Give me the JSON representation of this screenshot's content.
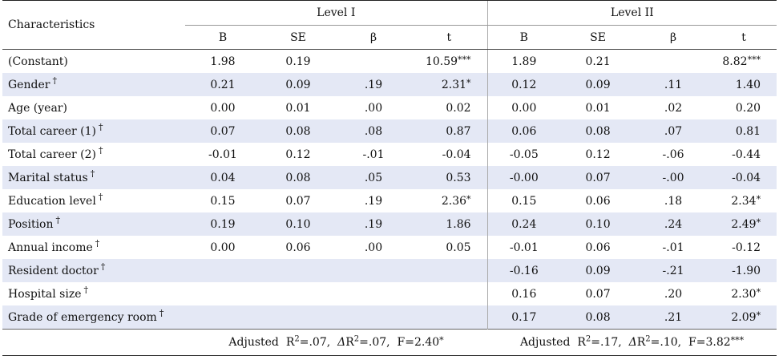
{
  "header": {
    "characteristics": "Characteristics",
    "level1": "Level I",
    "level2": "Level II",
    "cols": [
      "B",
      "SE",
      "β",
      "t",
      "B",
      "SE",
      "β",
      "t"
    ]
  },
  "rows": [
    {
      "label": "(Constant)",
      "dagger": "",
      "cells": [
        "1.98",
        "0.19",
        "",
        "10.59",
        "1.89",
        "0.21",
        "",
        "8.82"
      ],
      "sig": [
        "",
        "",
        "",
        "***",
        "",
        "",
        "",
        "***"
      ]
    },
    {
      "label": "Gender",
      "dagger": "†",
      "cells": [
        "0.21",
        "0.09",
        ".19",
        "2.31",
        "0.12",
        "0.09",
        ".11",
        "1.40"
      ],
      "sig": [
        "",
        "",
        "",
        "*",
        "",
        "",
        "",
        ""
      ]
    },
    {
      "label": "Age (year)",
      "dagger": "",
      "cells": [
        "0.00",
        "0.01",
        ".00",
        "0.02",
        "0.00",
        "0.01",
        ".02",
        "0.20"
      ],
      "sig": [
        "",
        "",
        "",
        "",
        "",
        "",
        "",
        ""
      ]
    },
    {
      "label": "Total career (1)",
      "dagger": "†",
      "cells": [
        "0.07",
        "0.08",
        ".08",
        "0.87",
        "0.06",
        "0.08",
        ".07",
        "0.81"
      ],
      "sig": [
        "",
        "",
        "",
        "",
        "",
        "",
        "",
        ""
      ]
    },
    {
      "label": "Total career (2)",
      "dagger": "†",
      "cells": [
        "-0.01",
        "0.12",
        "-.01",
        "-0.04",
        "-0.05",
        "0.12",
        "-.06",
        "-0.44"
      ],
      "sig": [
        "",
        "",
        "",
        "",
        "",
        "",
        "",
        ""
      ]
    },
    {
      "label": "Marital status",
      "dagger": "†",
      "cells": [
        "0.04",
        "0.08",
        ".05",
        "0.53",
        "-0.00",
        "0.07",
        "-.00",
        "-0.04"
      ],
      "sig": [
        "",
        "",
        "",
        "",
        "",
        "",
        "",
        ""
      ]
    },
    {
      "label": "Education level",
      "dagger": "†",
      "cells": [
        "0.15",
        "0.07",
        ".19",
        "2.36",
        "0.15",
        "0.06",
        ".18",
        "2.34"
      ],
      "sig": [
        "",
        "",
        "",
        "*",
        "",
        "",
        "",
        "*"
      ]
    },
    {
      "label": "Position",
      "dagger": "†",
      "cells": [
        "0.19",
        "0.10",
        ".19",
        "1.86",
        "0.24",
        "0.10",
        ".24",
        "2.49"
      ],
      "sig": [
        "",
        "",
        "",
        "",
        "",
        "",
        "",
        "*"
      ]
    },
    {
      "label": "Annual income",
      "dagger": "†",
      "cells": [
        "0.00",
        "0.06",
        ".00",
        "0.05",
        "-0.01",
        "0.06",
        "-.01",
        "-0.12"
      ],
      "sig": [
        "",
        "",
        "",
        "",
        "",
        "",
        "",
        ""
      ]
    },
    {
      "label": "Resident doctor",
      "dagger": "†",
      "cells": [
        "",
        "",
        "",
        "",
        "-0.16",
        "0.09",
        "-.21",
        "-1.90"
      ],
      "sig": [
        "",
        "",
        "",
        "",
        "",
        "",
        "",
        ""
      ]
    },
    {
      "label": "Hospital size",
      "dagger": "†",
      "cells": [
        "",
        "",
        "",
        "",
        "0.16",
        "0.07",
        ".20",
        "2.30"
      ],
      "sig": [
        "",
        "",
        "",
        "",
        "",
        "",
        "",
        "*"
      ]
    },
    {
      "label": "Grade of emergency room",
      "dagger": "†",
      "cells": [
        "",
        "",
        "",
        "",
        "0.17",
        "0.08",
        ".21",
        "2.09"
      ],
      "sig": [
        "",
        "",
        "",
        "",
        "",
        "",
        "",
        "*"
      ]
    }
  ],
  "footer": {
    "level1": {
      "prefix": "Adjusted",
      "r2_label": "R",
      "r2_exp": "2",
      "r2_val": "=.07,",
      "delta_label": "Δ",
      "delta_r": "R",
      "delta_exp": "2",
      "delta_val": "=.07,",
      "f": "F=2.40",
      "f_sig": "*"
    },
    "level2": {
      "prefix": "Adjusted",
      "r2_label": "R",
      "r2_exp": "2",
      "r2_val": "=.17,",
      "delta_label": "Δ",
      "delta_r": "R",
      "delta_exp": "2",
      "delta_val": "=.10,",
      "f": "F=3.82",
      "f_sig": "***"
    }
  }
}
